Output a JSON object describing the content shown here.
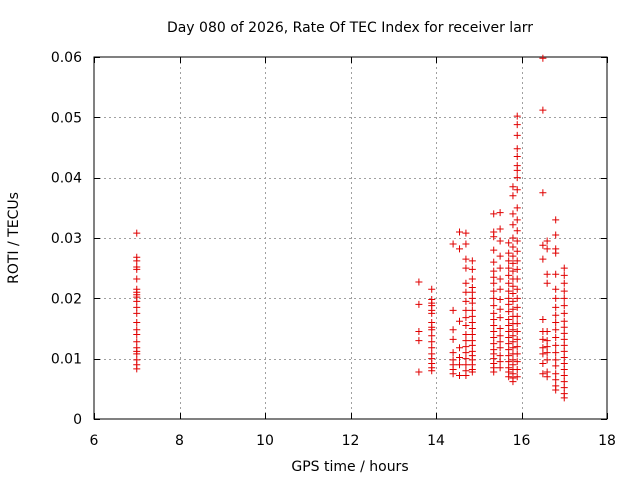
{
  "chart_data": {
    "type": "scatter",
    "title": "Day 080 of 2026, Rate Of TEC Index for receiver larr",
    "xlabel": "GPS time / hours",
    "ylabel": "ROTI / TECUs",
    "xlim": [
      6,
      18
    ],
    "ylim": [
      0,
      0.06
    ],
    "xticks": [
      6,
      8,
      10,
      12,
      14,
      16,
      18
    ],
    "xtick_labels": [
      "6",
      "8",
      "10",
      "12",
      "14",
      "16",
      "18"
    ],
    "yticks": [
      0,
      0.01,
      0.02,
      0.03,
      0.04,
      0.05,
      0.06
    ],
    "ytick_labels": [
      "0",
      "0.01",
      "0.02",
      "0.03",
      "0.04",
      "0.05",
      "0.06"
    ],
    "grid": true,
    "marker": "plus",
    "color": "#e00000",
    "series": [
      {
        "name": "ROTI",
        "points": [
          [
            7.0,
            0.0308
          ],
          [
            7.0,
            0.0268
          ],
          [
            7.0,
            0.0262
          ],
          [
            7.0,
            0.0252
          ],
          [
            7.0,
            0.0248
          ],
          [
            7.0,
            0.0232
          ],
          [
            7.0,
            0.0215
          ],
          [
            7.0,
            0.021
          ],
          [
            7.0,
            0.0206
          ],
          [
            7.0,
            0.0202
          ],
          [
            7.0,
            0.0195
          ],
          [
            7.0,
            0.0185
          ],
          [
            7.0,
            0.0175
          ],
          [
            7.0,
            0.016
          ],
          [
            7.0,
            0.0148
          ],
          [
            7.0,
            0.014
          ],
          [
            7.0,
            0.0128
          ],
          [
            7.0,
            0.0118
          ],
          [
            7.0,
            0.0112
          ],
          [
            7.0,
            0.0108
          ],
          [
            7.0,
            0.0098
          ],
          [
            7.0,
            0.009
          ],
          [
            7.0,
            0.0083
          ],
          [
            13.6,
            0.0227
          ],
          [
            13.6,
            0.019
          ],
          [
            13.6,
            0.0145
          ],
          [
            13.6,
            0.013
          ],
          [
            13.6,
            0.0078
          ],
          [
            13.9,
            0.0215
          ],
          [
            13.9,
            0.0198
          ],
          [
            13.9,
            0.0192
          ],
          [
            13.9,
            0.0188
          ],
          [
            13.9,
            0.018
          ],
          [
            13.9,
            0.0175
          ],
          [
            13.9,
            0.016
          ],
          [
            13.9,
            0.0152
          ],
          [
            13.9,
            0.0148
          ],
          [
            13.9,
            0.0138
          ],
          [
            13.9,
            0.0128
          ],
          [
            13.9,
            0.0118
          ],
          [
            13.9,
            0.0108
          ],
          [
            13.9,
            0.01
          ],
          [
            13.9,
            0.0092
          ],
          [
            13.9,
            0.0085
          ],
          [
            13.9,
            0.008
          ],
          [
            14.4,
            0.029
          ],
          [
            14.4,
            0.018
          ],
          [
            14.4,
            0.0148
          ],
          [
            14.4,
            0.0132
          ],
          [
            14.4,
            0.011
          ],
          [
            14.4,
            0.0098
          ],
          [
            14.4,
            0.009
          ],
          [
            14.4,
            0.0082
          ],
          [
            14.4,
            0.0075
          ],
          [
            14.55,
            0.031
          ],
          [
            14.55,
            0.0282
          ],
          [
            14.55,
            0.0162
          ],
          [
            14.55,
            0.0118
          ],
          [
            14.55,
            0.0102
          ],
          [
            14.55,
            0.009
          ],
          [
            14.55,
            0.0072
          ],
          [
            14.7,
            0.0308
          ],
          [
            14.7,
            0.029
          ],
          [
            14.7,
            0.0265
          ],
          [
            14.7,
            0.025
          ],
          [
            14.7,
            0.0225
          ],
          [
            14.7,
            0.021
          ],
          [
            14.7,
            0.0195
          ],
          [
            14.7,
            0.018
          ],
          [
            14.7,
            0.0168
          ],
          [
            14.7,
            0.0155
          ],
          [
            14.7,
            0.014
          ],
          [
            14.7,
            0.013
          ],
          [
            14.7,
            0.012
          ],
          [
            14.7,
            0.011
          ],
          [
            14.7,
            0.01
          ],
          [
            14.7,
            0.009
          ],
          [
            14.7,
            0.008
          ],
          [
            14.7,
            0.0072
          ],
          [
            14.85,
            0.0262
          ],
          [
            14.85,
            0.0248
          ],
          [
            14.85,
            0.0232
          ],
          [
            14.85,
            0.0218
          ],
          [
            14.85,
            0.021
          ],
          [
            14.85,
            0.02
          ],
          [
            14.85,
            0.0192
          ],
          [
            14.85,
            0.018
          ],
          [
            14.85,
            0.017
          ],
          [
            14.85,
            0.016
          ],
          [
            14.85,
            0.015
          ],
          [
            14.85,
            0.014
          ],
          [
            14.85,
            0.013
          ],
          [
            14.85,
            0.0122
          ],
          [
            14.85,
            0.0112
          ],
          [
            14.85,
            0.0105
          ],
          [
            14.85,
            0.0098
          ],
          [
            14.85,
            0.009
          ],
          [
            14.85,
            0.0082
          ],
          [
            14.85,
            0.0078
          ],
          [
            15.35,
            0.034
          ],
          [
            15.35,
            0.031
          ],
          [
            15.35,
            0.0302
          ],
          [
            15.35,
            0.028
          ],
          [
            15.35,
            0.026
          ],
          [
            15.35,
            0.0245
          ],
          [
            15.35,
            0.0235
          ],
          [
            15.35,
            0.0225
          ],
          [
            15.35,
            0.0212
          ],
          [
            15.35,
            0.02
          ],
          [
            15.35,
            0.0188
          ],
          [
            15.35,
            0.0175
          ],
          [
            15.35,
            0.0165
          ],
          [
            15.35,
            0.0155
          ],
          [
            15.35,
            0.0145
          ],
          [
            15.35,
            0.0135
          ],
          [
            15.35,
            0.0125
          ],
          [
            15.35,
            0.0115
          ],
          [
            15.35,
            0.0108
          ],
          [
            15.35,
            0.01
          ],
          [
            15.35,
            0.0092
          ],
          [
            15.35,
            0.0085
          ],
          [
            15.35,
            0.0078
          ],
          [
            15.5,
            0.0342
          ],
          [
            15.5,
            0.0315
          ],
          [
            15.5,
            0.0295
          ],
          [
            15.5,
            0.027
          ],
          [
            15.5,
            0.025
          ],
          [
            15.5,
            0.0232
          ],
          [
            15.5,
            0.0215
          ],
          [
            15.5,
            0.0198
          ],
          [
            15.5,
            0.0182
          ],
          [
            15.5,
            0.0168
          ],
          [
            15.5,
            0.015
          ],
          [
            15.5,
            0.0138
          ],
          [
            15.5,
            0.0128
          ],
          [
            15.5,
            0.0118
          ],
          [
            15.5,
            0.0105
          ],
          [
            15.5,
            0.0095
          ],
          [
            15.5,
            0.0085
          ],
          [
            15.7,
            0.0292
          ],
          [
            15.7,
            0.0275
          ],
          [
            15.7,
            0.0262
          ],
          [
            15.7,
            0.025
          ],
          [
            15.7,
            0.0238
          ],
          [
            15.7,
            0.0225
          ],
          [
            15.7,
            0.0212
          ],
          [
            15.7,
            0.02
          ],
          [
            15.7,
            0.019
          ],
          [
            15.7,
            0.0178
          ],
          [
            15.7,
            0.0165
          ],
          [
            15.7,
            0.0155
          ],
          [
            15.7,
            0.0145
          ],
          [
            15.7,
            0.0135
          ],
          [
            15.7,
            0.0125
          ],
          [
            15.7,
            0.0115
          ],
          [
            15.7,
            0.0105
          ],
          [
            15.7,
            0.0095
          ],
          [
            15.7,
            0.0085
          ],
          [
            15.7,
            0.0078
          ],
          [
            15.7,
            0.007
          ],
          [
            15.8,
            0.0385
          ],
          [
            15.8,
            0.037
          ],
          [
            15.8,
            0.034
          ],
          [
            15.8,
            0.0322
          ],
          [
            15.8,
            0.03
          ],
          [
            15.8,
            0.0285
          ],
          [
            15.8,
            0.027
          ],
          [
            15.8,
            0.0258
          ],
          [
            15.8,
            0.0245
          ],
          [
            15.8,
            0.0232
          ],
          [
            15.8,
            0.022
          ],
          [
            15.8,
            0.0208
          ],
          [
            15.8,
            0.0195
          ],
          [
            15.8,
            0.0182
          ],
          [
            15.8,
            0.017
          ],
          [
            15.8,
            0.0158
          ],
          [
            15.8,
            0.0148
          ],
          [
            15.8,
            0.0138
          ],
          [
            15.8,
            0.0128
          ],
          [
            15.8,
            0.0118
          ],
          [
            15.8,
            0.0108
          ],
          [
            15.8,
            0.0098
          ],
          [
            15.8,
            0.009
          ],
          [
            15.8,
            0.0082
          ],
          [
            15.8,
            0.0075
          ],
          [
            15.8,
            0.0068
          ],
          [
            15.8,
            0.0062
          ],
          [
            15.9,
            0.0502
          ],
          [
            15.9,
            0.0488
          ],
          [
            15.9,
            0.047
          ],
          [
            15.9,
            0.0448
          ],
          [
            15.9,
            0.0435
          ],
          [
            15.9,
            0.042
          ],
          [
            15.9,
            0.0412
          ],
          [
            15.9,
            0.04
          ],
          [
            15.9,
            0.038
          ],
          [
            15.9,
            0.035
          ],
          [
            15.9,
            0.033
          ],
          [
            15.9,
            0.0312
          ],
          [
            15.9,
            0.0295
          ],
          [
            15.9,
            0.0278
          ],
          [
            15.9,
            0.0262
          ],
          [
            15.9,
            0.0248
          ],
          [
            15.9,
            0.0232
          ],
          [
            15.9,
            0.0215
          ],
          [
            15.9,
            0.02
          ],
          [
            15.9,
            0.0185
          ],
          [
            15.9,
            0.017
          ],
          [
            15.9,
            0.0158
          ],
          [
            15.9,
            0.0145
          ],
          [
            15.9,
            0.0132
          ],
          [
            15.9,
            0.012
          ],
          [
            15.9,
            0.0108
          ],
          [
            15.9,
            0.0095
          ],
          [
            15.9,
            0.0082
          ],
          [
            15.9,
            0.007
          ],
          [
            16.5,
            0.0598
          ],
          [
            16.5,
            0.0512
          ],
          [
            16.5,
            0.0375
          ],
          [
            16.5,
            0.0288
          ],
          [
            16.5,
            0.0265
          ],
          [
            16.5,
            0.0165
          ],
          [
            16.5,
            0.0145
          ],
          [
            16.5,
            0.0132
          ],
          [
            16.5,
            0.0118
          ],
          [
            16.5,
            0.0108
          ],
          [
            16.5,
            0.0092
          ],
          [
            16.5,
            0.0075
          ],
          [
            16.6,
            0.0295
          ],
          [
            16.6,
            0.0282
          ],
          [
            16.6,
            0.024
          ],
          [
            16.6,
            0.0225
          ],
          [
            16.6,
            0.0145
          ],
          [
            16.6,
            0.013
          ],
          [
            16.6,
            0.012
          ],
          [
            16.6,
            0.011
          ],
          [
            16.6,
            0.0098
          ],
          [
            16.6,
            0.0078
          ],
          [
            16.6,
            0.007
          ],
          [
            16.8,
            0.033
          ],
          [
            16.8,
            0.0305
          ],
          [
            16.8,
            0.0282
          ],
          [
            16.8,
            0.0275
          ],
          [
            16.8,
            0.024
          ],
          [
            16.8,
            0.0215
          ],
          [
            16.8,
            0.02
          ],
          [
            16.8,
            0.0185
          ],
          [
            16.8,
            0.0172
          ],
          [
            16.8,
            0.016
          ],
          [
            16.8,
            0.0148
          ],
          [
            16.8,
            0.0135
          ],
          [
            16.8,
            0.0122
          ],
          [
            16.8,
            0.011
          ],
          [
            16.8,
            0.0098
          ],
          [
            16.8,
            0.0088
          ],
          [
            16.8,
            0.0075
          ],
          [
            16.8,
            0.0065
          ],
          [
            16.8,
            0.0055
          ],
          [
            16.8,
            0.0048
          ],
          [
            17.0,
            0.025
          ],
          [
            17.0,
            0.0238
          ],
          [
            17.0,
            0.0225
          ],
          [
            17.0,
            0.0212
          ],
          [
            17.0,
            0.02
          ],
          [
            17.0,
            0.0188
          ],
          [
            17.0,
            0.0175
          ],
          [
            17.0,
            0.0162
          ],
          [
            17.0,
            0.0152
          ],
          [
            17.0,
            0.0142
          ],
          [
            17.0,
            0.0132
          ],
          [
            17.0,
            0.0122
          ],
          [
            17.0,
            0.0112
          ],
          [
            17.0,
            0.0102
          ],
          [
            17.0,
            0.0092
          ],
          [
            17.0,
            0.0082
          ],
          [
            17.0,
            0.0072
          ],
          [
            17.0,
            0.0062
          ],
          [
            17.0,
            0.0052
          ],
          [
            17.0,
            0.0042
          ],
          [
            17.0,
            0.0035
          ]
        ]
      }
    ]
  }
}
